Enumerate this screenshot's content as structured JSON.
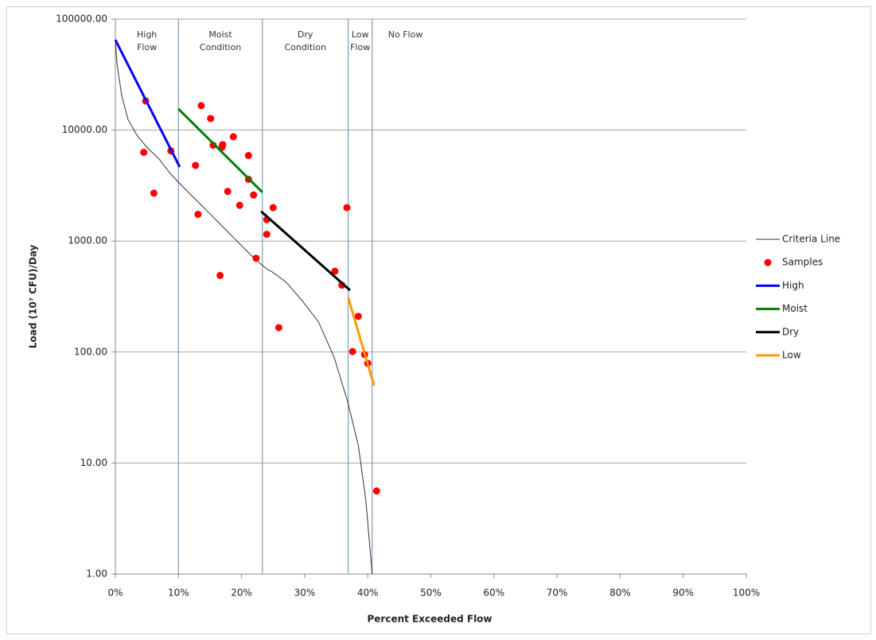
{
  "chart_data": {
    "type": "line",
    "x_label": "Percent Exceeded Flow",
    "y_label": "Load (10⁷ CFU)/Day",
    "log_y": true,
    "grid": true,
    "legend_position": "right",
    "xlim": [
      0,
      100
    ],
    "xticks": [
      {
        "value": 0,
        "label": "0%"
      },
      {
        "value": 10,
        "label": "10%"
      },
      {
        "value": 20,
        "label": "20%"
      },
      {
        "value": 30,
        "label": "30%"
      },
      {
        "value": 40,
        "label": "40%"
      },
      {
        "value": 50,
        "label": "50%"
      },
      {
        "value": 60,
        "label": "60%"
      },
      {
        "value": 70,
        "label": "70%"
      },
      {
        "value": 80,
        "label": "80%"
      },
      {
        "value": 90,
        "label": "90%"
      },
      {
        "value": 100,
        "label": "100%"
      }
    ],
    "ylim": [
      1,
      100000
    ],
    "yticks": [
      {
        "value": 1,
        "label": "1.00"
      },
      {
        "value": 10,
        "label": "10.00"
      },
      {
        "value": 100,
        "label": "100.00"
      },
      {
        "value": 1000,
        "label": "1000.00"
      },
      {
        "value": 10000,
        "label": "10000.00"
      },
      {
        "value": 100000,
        "label": "100000.00"
      }
    ],
    "regime_boundaries": [
      10,
      23.3,
      36.9,
      40.7
    ],
    "regime_color": "#7a9cc4",
    "regime_labels": [
      [
        "High",
        "Flow"
      ],
      [
        "Moist",
        "Condition"
      ],
      [
        "Dry",
        "Condition"
      ],
      [
        "Low",
        "Flow"
      ],
      [
        "No Flow"
      ]
    ],
    "series": [
      {
        "name": "Criteria Line",
        "type": "line",
        "color": "#333333",
        "width": 1,
        "x": [
          0,
          0.25,
          1,
          2,
          3.4,
          5,
          6.9,
          8.8,
          10.5,
          12,
          14.5,
          17,
          19.5,
          22,
          24,
          24.8,
          27.1,
          29.6,
          32.2,
          34.7,
          36.8,
          38.5,
          39.7,
          40.7
        ],
        "values": [
          65000,
          40000,
          20500,
          12500,
          9000,
          7000,
          5500,
          4000,
          3170,
          2600,
          1880,
          1350,
          970,
          700,
          560,
          530,
          425,
          290,
          187,
          89,
          36,
          14.5,
          4.6,
          1
        ]
      },
      {
        "name": "Samples",
        "type": "scatter",
        "color": "#ff0000",
        "x": [
          4.8,
          4.5,
          6.1,
          8.8,
          13.6,
          15.1,
          12.7,
          15.5,
          17.0,
          16.9,
          18.7,
          21.1,
          21.1,
          17.8,
          21.9,
          13.1,
          19.7,
          25.0,
          24.0,
          24.0,
          22.3,
          16.6,
          25.9,
          36.7,
          34.8,
          35.9,
          38.5,
          37.6,
          39.5,
          40.0,
          41.4
        ],
        "values": [
          18300,
          6300,
          2700,
          6500,
          16600,
          12700,
          4800,
          7300,
          7400,
          7000,
          8700,
          5900,
          3600,
          2800,
          2600,
          1740,
          2100,
          2000,
          1560,
          1150,
          700,
          490,
          166,
          2000,
          535,
          400,
          210,
          101,
          95,
          79,
          5.6
        ]
      },
      {
        "name": "High",
        "type": "line",
        "color": "#0000ff",
        "width": 3,
        "x": [
          0,
          10.2
        ],
        "values": [
          65000,
          4650
        ]
      },
      {
        "name": "Moist",
        "type": "line",
        "color": "#008000",
        "width": 3,
        "x": [
          10,
          23.3
        ],
        "values": [
          15500,
          2750
        ]
      },
      {
        "name": "Dry",
        "type": "line",
        "color": "#000000",
        "width": 3,
        "x": [
          23.1,
          37.2
        ],
        "values": [
          1850,
          360
        ]
      },
      {
        "name": "Low",
        "type": "line",
        "color": "#ff9900",
        "width": 3,
        "x": [
          36.9,
          41.0
        ],
        "values": [
          310,
          50
        ]
      }
    ]
  }
}
